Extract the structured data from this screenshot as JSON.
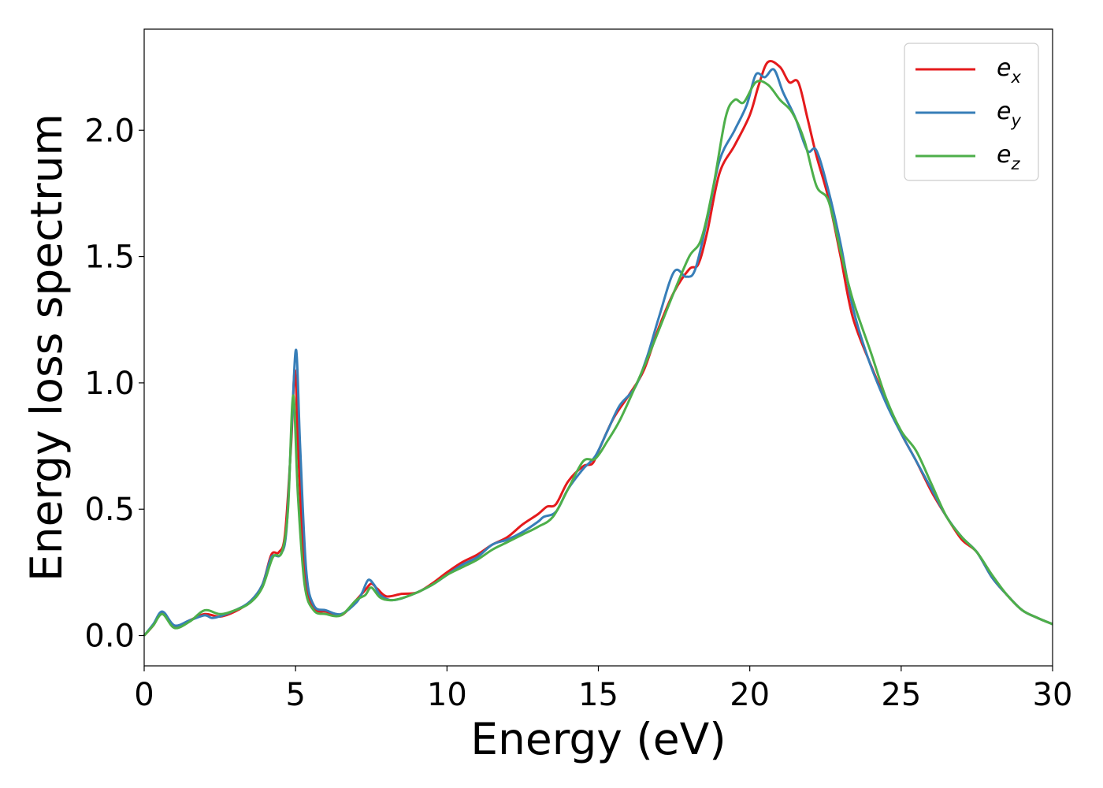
{
  "chart_data": {
    "type": "line",
    "title": "",
    "xlabel": "Energy (eV)",
    "ylabel": "Energy loss spectrum",
    "xlim": [
      0,
      30
    ],
    "ylim": [
      -0.12,
      2.4
    ],
    "xticks": [
      0,
      5,
      10,
      15,
      20,
      25,
      30
    ],
    "xtick_labels": [
      "0",
      "5",
      "10",
      "15",
      "20",
      "25",
      "30"
    ],
    "yticks": [
      0.0,
      0.5,
      1.0,
      1.5,
      2.0
    ],
    "ytick_labels": [
      "0.0",
      "0.5",
      "1.0",
      "1.5",
      "2.0"
    ],
    "grid": false,
    "legend_position": "top-right",
    "series": [
      {
        "name": "e_x",
        "label_base": "e",
        "label_sub": "x",
        "color": "#e41a1c",
        "points": [
          [
            0,
            0.0
          ],
          [
            0.3,
            0.04
          ],
          [
            0.6,
            0.09
          ],
          [
            1.0,
            0.035
          ],
          [
            1.5,
            0.06
          ],
          [
            2.0,
            0.085
          ],
          [
            2.5,
            0.075
          ],
          [
            3.0,
            0.095
          ],
          [
            3.5,
            0.135
          ],
          [
            3.9,
            0.2
          ],
          [
            4.2,
            0.32
          ],
          [
            4.45,
            0.33
          ],
          [
            4.65,
            0.4
          ],
          [
            4.85,
            0.75
          ],
          [
            4.98,
            1.05
          ],
          [
            5.1,
            0.7
          ],
          [
            5.3,
            0.25
          ],
          [
            5.6,
            0.11
          ],
          [
            6.0,
            0.095
          ],
          [
            6.5,
            0.08
          ],
          [
            7.0,
            0.14
          ],
          [
            7.3,
            0.18
          ],
          [
            7.5,
            0.205
          ],
          [
            7.7,
            0.185
          ],
          [
            8.0,
            0.155
          ],
          [
            8.5,
            0.165
          ],
          [
            9.0,
            0.17
          ],
          [
            9.5,
            0.205
          ],
          [
            10.0,
            0.25
          ],
          [
            10.5,
            0.29
          ],
          [
            11.0,
            0.32
          ],
          [
            11.5,
            0.36
          ],
          [
            12.0,
            0.39
          ],
          [
            12.5,
            0.44
          ],
          [
            13.0,
            0.48
          ],
          [
            13.3,
            0.51
          ],
          [
            13.6,
            0.52
          ],
          [
            14.0,
            0.61
          ],
          [
            14.5,
            0.67
          ],
          [
            14.8,
            0.68
          ],
          [
            15.0,
            0.73
          ],
          [
            15.5,
            0.86
          ],
          [
            16.0,
            0.95
          ],
          [
            16.5,
            1.05
          ],
          [
            17.0,
            1.22
          ],
          [
            17.5,
            1.36
          ],
          [
            18.0,
            1.45
          ],
          [
            18.3,
            1.47
          ],
          [
            18.6,
            1.6
          ],
          [
            19.0,
            1.83
          ],
          [
            19.5,
            1.94
          ],
          [
            20.0,
            2.06
          ],
          [
            20.3,
            2.18
          ],
          [
            20.6,
            2.27
          ],
          [
            21.0,
            2.25
          ],
          [
            21.3,
            2.19
          ],
          [
            21.6,
            2.19
          ],
          [
            21.9,
            2.05
          ],
          [
            22.2,
            1.9
          ],
          [
            22.6,
            1.73
          ],
          [
            23.0,
            1.5
          ],
          [
            23.4,
            1.26
          ],
          [
            24.0,
            1.07
          ],
          [
            24.5,
            0.93
          ],
          [
            25.0,
            0.8
          ],
          [
            25.5,
            0.69
          ],
          [
            26.0,
            0.57
          ],
          [
            26.5,
            0.47
          ],
          [
            27.0,
            0.38
          ],
          [
            27.5,
            0.33
          ],
          [
            28.0,
            0.23
          ],
          [
            28.5,
            0.16
          ],
          [
            29.0,
            0.1
          ],
          [
            29.5,
            0.07
          ],
          [
            30.0,
            0.045
          ]
        ]
      },
      {
        "name": "e_y",
        "label_base": "e",
        "label_sub": "y",
        "color": "#377eb8",
        "points": [
          [
            0,
            0.0
          ],
          [
            0.3,
            0.045
          ],
          [
            0.6,
            0.095
          ],
          [
            1.0,
            0.04
          ],
          [
            1.5,
            0.06
          ],
          [
            2.0,
            0.08
          ],
          [
            2.3,
            0.07
          ],
          [
            3.0,
            0.1
          ],
          [
            3.5,
            0.135
          ],
          [
            3.9,
            0.2
          ],
          [
            4.2,
            0.31
          ],
          [
            4.5,
            0.32
          ],
          [
            4.7,
            0.42
          ],
          [
            4.88,
            0.85
          ],
          [
            5.02,
            1.13
          ],
          [
            5.15,
            0.75
          ],
          [
            5.35,
            0.26
          ],
          [
            5.6,
            0.12
          ],
          [
            6.0,
            0.1
          ],
          [
            6.5,
            0.085
          ],
          [
            7.0,
            0.13
          ],
          [
            7.2,
            0.17
          ],
          [
            7.4,
            0.22
          ],
          [
            7.6,
            0.2
          ],
          [
            7.8,
            0.16
          ],
          [
            8.2,
            0.14
          ],
          [
            8.8,
            0.16
          ],
          [
            9.5,
            0.2
          ],
          [
            10.0,
            0.24
          ],
          [
            10.5,
            0.28
          ],
          [
            11.0,
            0.31
          ],
          [
            11.5,
            0.36
          ],
          [
            12.0,
            0.38
          ],
          [
            12.5,
            0.41
          ],
          [
            13.0,
            0.45
          ],
          [
            13.2,
            0.47
          ],
          [
            13.6,
            0.49
          ],
          [
            14.0,
            0.58
          ],
          [
            14.5,
            0.66
          ],
          [
            14.9,
            0.71
          ],
          [
            15.3,
            0.81
          ],
          [
            15.7,
            0.91
          ],
          [
            16.2,
            0.98
          ],
          [
            16.6,
            1.1
          ],
          [
            17.0,
            1.26
          ],
          [
            17.5,
            1.44
          ],
          [
            17.9,
            1.42
          ],
          [
            18.2,
            1.45
          ],
          [
            18.6,
            1.65
          ],
          [
            19.0,
            1.88
          ],
          [
            19.5,
            2.0
          ],
          [
            19.9,
            2.1
          ],
          [
            20.2,
            2.22
          ],
          [
            20.5,
            2.21
          ],
          [
            20.8,
            2.24
          ],
          [
            21.1,
            2.15
          ],
          [
            21.5,
            2.05
          ],
          [
            21.9,
            1.92
          ],
          [
            22.2,
            1.92
          ],
          [
            22.6,
            1.76
          ],
          [
            23.0,
            1.55
          ],
          [
            23.4,
            1.3
          ],
          [
            23.9,
            1.1
          ],
          [
            24.5,
            0.92
          ],
          [
            25.0,
            0.8
          ],
          [
            25.5,
            0.69
          ],
          [
            26.0,
            0.58
          ],
          [
            26.5,
            0.47
          ],
          [
            27.0,
            0.39
          ],
          [
            27.5,
            0.33
          ],
          [
            28.0,
            0.23
          ],
          [
            28.5,
            0.16
          ],
          [
            29.0,
            0.1
          ],
          [
            29.5,
            0.07
          ],
          [
            30.0,
            0.045
          ]
        ]
      },
      {
        "name": "e_z",
        "label_base": "e",
        "label_sub": "z",
        "color": "#4daf4a",
        "points": [
          [
            0,
            0.0
          ],
          [
            0.3,
            0.04
          ],
          [
            0.6,
            0.085
          ],
          [
            1.0,
            0.03
          ],
          [
            1.5,
            0.055
          ],
          [
            2.0,
            0.1
          ],
          [
            2.5,
            0.085
          ],
          [
            3.0,
            0.1
          ],
          [
            3.5,
            0.13
          ],
          [
            3.9,
            0.19
          ],
          [
            4.25,
            0.31
          ],
          [
            4.55,
            0.33
          ],
          [
            4.75,
            0.5
          ],
          [
            4.92,
            0.95
          ],
          [
            5.08,
            0.55
          ],
          [
            5.3,
            0.2
          ],
          [
            5.6,
            0.1
          ],
          [
            6.0,
            0.085
          ],
          [
            6.5,
            0.08
          ],
          [
            7.0,
            0.14
          ],
          [
            7.3,
            0.16
          ],
          [
            7.5,
            0.19
          ],
          [
            7.8,
            0.15
          ],
          [
            8.2,
            0.14
          ],
          [
            8.8,
            0.16
          ],
          [
            9.5,
            0.2
          ],
          [
            10.0,
            0.24
          ],
          [
            10.5,
            0.27
          ],
          [
            11.0,
            0.3
          ],
          [
            11.5,
            0.34
          ],
          [
            12.0,
            0.37
          ],
          [
            12.5,
            0.4
          ],
          [
            13.0,
            0.43
          ],
          [
            13.5,
            0.47
          ],
          [
            14.0,
            0.58
          ],
          [
            14.5,
            0.69
          ],
          [
            14.9,
            0.7
          ],
          [
            15.3,
            0.77
          ],
          [
            15.7,
            0.85
          ],
          [
            16.2,
            0.98
          ],
          [
            16.6,
            1.09
          ],
          [
            17.0,
            1.21
          ],
          [
            17.5,
            1.36
          ],
          [
            18.0,
            1.5
          ],
          [
            18.4,
            1.57
          ],
          [
            18.8,
            1.78
          ],
          [
            19.2,
            2.05
          ],
          [
            19.5,
            2.12
          ],
          [
            19.8,
            2.11
          ],
          [
            20.2,
            2.19
          ],
          [
            20.6,
            2.18
          ],
          [
            21.0,
            2.12
          ],
          [
            21.4,
            2.07
          ],
          [
            21.8,
            1.96
          ],
          [
            22.2,
            1.78
          ],
          [
            22.6,
            1.72
          ],
          [
            23.0,
            1.52
          ],
          [
            23.4,
            1.33
          ],
          [
            24.0,
            1.12
          ],
          [
            24.5,
            0.94
          ],
          [
            25.0,
            0.81
          ],
          [
            25.5,
            0.73
          ],
          [
            26.0,
            0.6
          ],
          [
            26.5,
            0.47
          ],
          [
            27.0,
            0.39
          ],
          [
            27.5,
            0.33
          ],
          [
            28.0,
            0.24
          ],
          [
            28.5,
            0.16
          ],
          [
            29.0,
            0.1
          ],
          [
            29.5,
            0.07
          ],
          [
            30.0,
            0.045
          ]
        ]
      }
    ]
  }
}
